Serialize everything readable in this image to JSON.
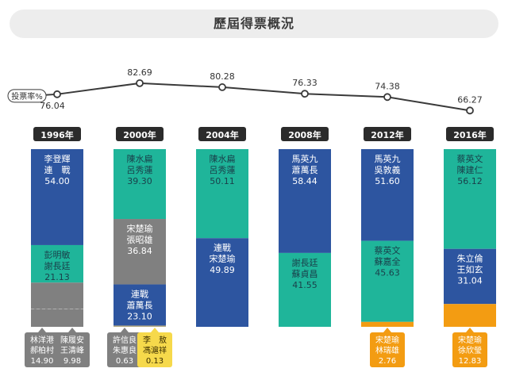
{
  "title": "歷屆得票概況",
  "chart_data": {
    "type": "bar",
    "subtype": "stacked-100-percent-with-turnout-line",
    "turnout_label": "投票率%",
    "categories": [
      "1996年",
      "2000年",
      "2004年",
      "2008年",
      "2012年",
      "2016年"
    ],
    "turnout": [
      76.04,
      82.69,
      80.28,
      76.33,
      74.38,
      66.27
    ],
    "colors": {
      "dpp": "#1fb59a",
      "kmt": "#2d55a0",
      "gray": "#808080",
      "pfp": "#f39c12",
      "yellow": "#f6d94b",
      "line": "#3a3a3a",
      "year_label_bg": "#2b2b2b"
    },
    "elections": [
      {
        "year": "1996年",
        "segments": [
          {
            "names": [
              "李登輝",
              "連　戰"
            ],
            "value": 54.0,
            "party": "kmt"
          },
          {
            "names": [
              "彭明敏",
              "謝長廷"
            ],
            "value": 21.13,
            "party": "dpp"
          },
          {
            "names": [
              "林洋港",
              "郝柏村"
            ],
            "value": 14.9,
            "party": "gray",
            "callout": "left",
            "dashed_divider": true
          },
          {
            "names": [
              "陳履安",
              "王清峰"
            ],
            "value": 9.98,
            "party": "gray",
            "callout": "right"
          }
        ]
      },
      {
        "year": "2000年",
        "segments": [
          {
            "names": [
              "陳水扁",
              "呂秀蓮"
            ],
            "value": 39.3,
            "party": "dpp"
          },
          {
            "names": [
              "宋楚瑜",
              "張昭雄"
            ],
            "value": 36.84,
            "party": "gray"
          },
          {
            "names": [
              "連戰",
              "蕭萬長"
            ],
            "value": 23.1,
            "party": "kmt"
          },
          {
            "names": [
              "許信良",
              "朱惠良"
            ],
            "value": 0.63,
            "party": "gray",
            "callout": "left"
          },
          {
            "names": [
              "李　敖",
              "馮滬祥"
            ],
            "value": 0.13,
            "party": "yellow",
            "callout": "right"
          }
        ]
      },
      {
        "year": "2004年",
        "segments": [
          {
            "names": [
              "陳水扁",
              "呂秀蓮"
            ],
            "value": 50.11,
            "party": "dpp"
          },
          {
            "names": [
              "連戰",
              "宋楚瑜"
            ],
            "value": 49.89,
            "party": "kmt"
          }
        ]
      },
      {
        "year": "2008年",
        "segments": [
          {
            "names": [
              "馬英九",
              "蕭萬長"
            ],
            "value": 58.44,
            "party": "kmt"
          },
          {
            "names": [
              "謝長廷",
              "蘇貞昌"
            ],
            "value": 41.55,
            "party": "dpp"
          }
        ]
      },
      {
        "year": "2012年",
        "segments": [
          {
            "names": [
              "馬英九",
              "吳敦義"
            ],
            "value": 51.6,
            "party": "kmt"
          },
          {
            "names": [
              "蔡英文",
              "蘇嘉全"
            ],
            "value": 45.63,
            "party": "dpp"
          },
          {
            "names": [
              "宋楚瑜",
              "林瑞雄"
            ],
            "value": 2.76,
            "party": "pfp",
            "callout": "center"
          }
        ]
      },
      {
        "year": "2016年",
        "segments": [
          {
            "names": [
              "蔡英文",
              "陳建仁"
            ],
            "value": 56.12,
            "party": "dpp"
          },
          {
            "names": [
              "朱立倫",
              "王如玄"
            ],
            "value": 31.04,
            "party": "kmt"
          },
          {
            "names": [
              "宋楚瑜",
              "徐欣瑩"
            ],
            "value": 12.83,
            "party": "pfp",
            "callout": "center"
          }
        ]
      }
    ]
  }
}
